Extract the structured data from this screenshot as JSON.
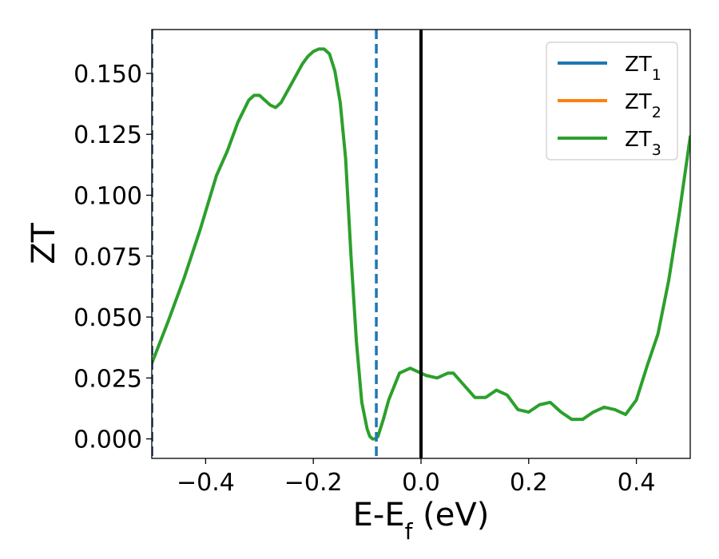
{
  "chart_data": {
    "type": "line",
    "xlabel": "E-E",
    "xlabel_sub": "f",
    "xlabel_unit": " (eV)",
    "ylabel": "ZT",
    "xlim": [
      -0.5,
      0.5
    ],
    "ylim": [
      -0.008,
      0.168
    ],
    "xticks": [
      -0.4,
      -0.2,
      0.0,
      0.2,
      0.4
    ],
    "xtick_labels": [
      "−0.4",
      "−0.2",
      "0.0",
      "0.2",
      "0.4"
    ],
    "yticks": [
      0.0,
      0.025,
      0.05,
      0.075,
      0.1,
      0.125,
      0.15
    ],
    "ytick_labels": [
      "0.000",
      "0.025",
      "0.050",
      "0.075",
      "0.100",
      "0.125",
      "0.150"
    ],
    "legend_position": "top-right",
    "grid": false,
    "vlines": [
      {
        "x": -0.5,
        "style": "dashed",
        "color": "#1f3a6e"
      },
      {
        "x": -0.083,
        "style": "dashed",
        "color": "#1f77b4"
      },
      {
        "x": 0.0,
        "style": "solid",
        "color": "#000000"
      }
    ],
    "series": [
      {
        "name": "ZT",
        "sub": "1",
        "color": "#1f77b4",
        "x": [],
        "y": []
      },
      {
        "name": "ZT",
        "sub": "2",
        "color": "#ff7f0e",
        "x": [],
        "y": []
      },
      {
        "name": "ZT",
        "sub": "3",
        "color": "#2ca02c",
        "x": [
          -0.5,
          -0.47,
          -0.44,
          -0.41,
          -0.38,
          -0.36,
          -0.34,
          -0.32,
          -0.31,
          -0.3,
          -0.29,
          -0.28,
          -0.27,
          -0.26,
          -0.24,
          -0.22,
          -0.21,
          -0.2,
          -0.19,
          -0.18,
          -0.17,
          -0.16,
          -0.15,
          -0.14,
          -0.13,
          -0.12,
          -0.11,
          -0.1,
          -0.095,
          -0.09,
          -0.085,
          -0.08,
          -0.07,
          -0.06,
          -0.04,
          -0.02,
          -0.01,
          0.0,
          0.01,
          0.03,
          0.05,
          0.06,
          0.08,
          0.1,
          0.12,
          0.14,
          0.16,
          0.18,
          0.2,
          0.22,
          0.24,
          0.26,
          0.28,
          0.3,
          0.32,
          0.34,
          0.36,
          0.38,
          0.4,
          0.42,
          0.44,
          0.46,
          0.48,
          0.5
        ],
        "y": [
          0.031,
          0.048,
          0.066,
          0.086,
          0.108,
          0.118,
          0.13,
          0.139,
          0.141,
          0.141,
          0.139,
          0.137,
          0.136,
          0.138,
          0.146,
          0.154,
          0.157,
          0.159,
          0.16,
          0.16,
          0.158,
          0.151,
          0.138,
          0.115,
          0.075,
          0.04,
          0.015,
          0.004,
          0.001,
          0.0,
          0.0,
          0.001,
          0.008,
          0.016,
          0.027,
          0.029,
          0.028,
          0.027,
          0.026,
          0.025,
          0.027,
          0.027,
          0.022,
          0.017,
          0.017,
          0.02,
          0.018,
          0.012,
          0.011,
          0.014,
          0.015,
          0.011,
          0.008,
          0.008,
          0.011,
          0.013,
          0.012,
          0.01,
          0.016,
          0.03,
          0.043,
          0.065,
          0.093,
          0.124
        ]
      }
    ]
  }
}
